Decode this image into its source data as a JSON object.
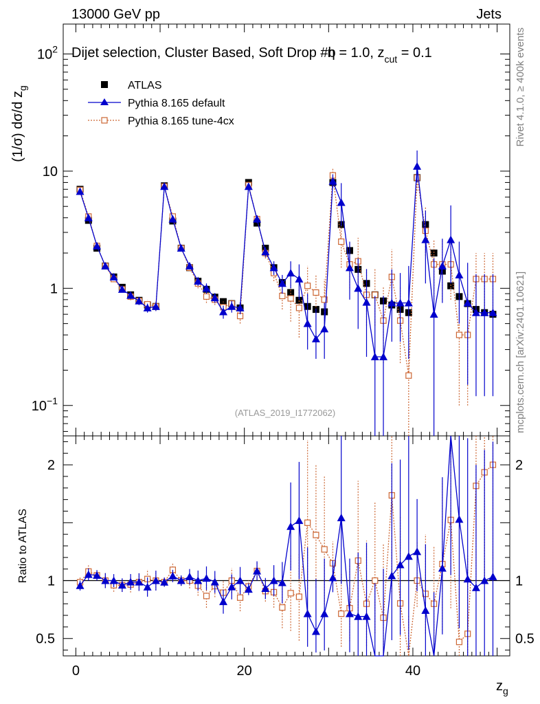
{
  "header": {
    "left": "13000 GeV pp",
    "right": "Jets"
  },
  "side_text": {
    "rivet": "Rivet 4.1.0, ≥ 400k events",
    "mcplots": "mcplots.cern.ch [arXiv:2401.10621]"
  },
  "colors": {
    "atlas": "#000000",
    "default": "#0000cc",
    "tune": "#cc6633",
    "ref_line": "#000000"
  },
  "chart_data": {
    "type": "line",
    "title": "Dijet selection, Cluster Based, Soft Drop #b = 1.0, z_cut = 0.1",
    "title_parts": {
      "main": "Dijet selection, Cluster Based, Soft Drop #b",
      "eta": "η",
      "beta_val": " = 1.0, z",
      "cut_sub": "cut",
      "cut_val": " = 0.1"
    },
    "xlabel": "z",
    "xlabel_sub": "g",
    "ylabel": "(1/σ) dσ/d z",
    "ylabel_sub": "g",
    "ratio_ylabel": "Ratio to ATLAS",
    "watermark": "(ATLAS_2019_I1772062)",
    "xlim": [
      -1.5,
      51.5
    ],
    "ylim": [
      0.055,
      180
    ],
    "ratio_ylim": [
      0.35,
      2.25
    ],
    "x_ticks": [
      0,
      20,
      40
    ],
    "y_tick_labels": {
      "1e2": "10",
      "1e2_exp": "2",
      "10": "10",
      "1": "1",
      "1e-1": "10",
      "1e-1_exp": "−1"
    },
    "ratio_ticks": [
      0.5,
      1,
      2
    ],
    "legend": [
      {
        "name": "ATLAS",
        "marker": "square-filled"
      },
      {
        "name": "Pythia 8.165 default",
        "marker": "triangle"
      },
      {
        "name": "Pythia 8.165 tune-4cx",
        "marker": "square-open"
      }
    ],
    "x": [
      0.5,
      1.5,
      2.5,
      3.5,
      4.5,
      5.5,
      6.5,
      7.5,
      8.5,
      9.5,
      10.5,
      11.5,
      12.5,
      13.5,
      14.5,
      15.5,
      16.5,
      17.5,
      18.5,
      19.5,
      20.5,
      21.5,
      22.5,
      23.5,
      24.5,
      25.5,
      26.5,
      27.5,
      28.5,
      29.5,
      30.5,
      31.5,
      32.5,
      33.5,
      34.5,
      35.5,
      36.5,
      37.5,
      38.5,
      39.5,
      40.5,
      41.5,
      42.5,
      43.5,
      44.5,
      45.5,
      46.5,
      47.5,
      48.5,
      49.5
    ],
    "series": [
      {
        "name": "ATLAS",
        "values": [
          7.0,
          3.8,
          2.2,
          1.55,
          1.25,
          1.02,
          0.88,
          0.79,
          0.72,
          0.7,
          7.5,
          3.75,
          2.2,
          1.5,
          1.15,
          0.98,
          0.84,
          0.77,
          0.74,
          0.68,
          8.0,
          3.6,
          2.2,
          1.5,
          1.12,
          0.92,
          0.79,
          0.7,
          0.66,
          0.63,
          8.0,
          3.5,
          2.1,
          1.45,
          1.1,
          0.88,
          0.78,
          0.72,
          0.66,
          0.62,
          8.8,
          3.5,
          2.0,
          1.4,
          1.05,
          0.85,
          0.74,
          0.66,
          0.62,
          0.6
        ]
      },
      {
        "name": "Pythia 8.165 default",
        "values": [
          6.7,
          4.0,
          2.3,
          1.55,
          1.25,
          0.98,
          0.87,
          0.78,
          0.68,
          0.7,
          7.4,
          3.9,
          2.2,
          1.55,
          1.15,
          1.0,
          0.83,
          0.63,
          0.7,
          0.68,
          7.4,
          3.9,
          2.05,
          1.5,
          1.1,
          1.35,
          1.2,
          0.5,
          0.37,
          0.45,
          8.2,
          5.4,
          1.5,
          1.0,
          0.76,
          0.26,
          0.26,
          0.75,
          0.75,
          0.75,
          11.0,
          2.6,
          0.6,
          1.55,
          2.6,
          1.3,
          0.75,
          0.62,
          0.62,
          0.62
        ],
        "err_low": [
          0.3,
          0.2,
          0.1,
          0.1,
          0.07,
          0.06,
          0.06,
          0.06,
          0.06,
          0.06,
          0.3,
          0.2,
          0.1,
          0.1,
          0.1,
          0.1,
          0.08,
          0.08,
          0.08,
          0.08,
          0.4,
          0.3,
          0.2,
          0.2,
          0.2,
          0.35,
          0.4,
          0.2,
          0.12,
          0.2,
          1.0,
          2.0,
          0.7,
          0.55,
          0.5,
          0.26,
          0.26,
          0.4,
          0.4,
          0.5,
          3.0,
          1.5,
          0.6,
          0.8,
          1.5,
          0.8,
          0.6,
          0.5,
          0.5,
          0.5
        ],
        "err_high": [
          0.3,
          0.2,
          0.1,
          0.1,
          0.07,
          0.06,
          0.06,
          0.06,
          0.06,
          0.06,
          0.3,
          0.2,
          0.1,
          0.1,
          0.1,
          0.1,
          0.08,
          0.08,
          0.08,
          0.08,
          0.4,
          0.3,
          0.2,
          0.2,
          0.2,
          0.35,
          0.4,
          0.4,
          0.3,
          0.3,
          1.2,
          2.5,
          1.0,
          0.8,
          0.7,
          0.6,
          0.6,
          0.7,
          0.6,
          0.8,
          4.0,
          2.0,
          1.2,
          1.1,
          2.5,
          1.2,
          0.9,
          0.7,
          0.7,
          0.7
        ]
      },
      {
        "name": "Pythia 8.165 tune-4cx",
        "values": [
          6.9,
          4.1,
          2.3,
          1.55,
          1.2,
          0.98,
          0.85,
          0.78,
          0.73,
          0.7,
          7.4,
          4.1,
          2.2,
          1.5,
          1.1,
          0.85,
          0.8,
          0.69,
          0.74,
          0.58,
          7.6,
          3.9,
          2.0,
          1.35,
          0.86,
          0.82,
          0.68,
          1.05,
          0.92,
          0.8,
          9.2,
          2.5,
          1.6,
          1.7,
          0.88,
          0.88,
          0.53,
          1.25,
          0.53,
          0.18,
          8.8,
          3.1,
          1.6,
          1.6,
          1.6,
          0.4,
          0.4,
          1.2,
          1.2,
          1.2
        ],
        "err_low": [
          0.3,
          0.2,
          0.1,
          0.1,
          0.07,
          0.06,
          0.06,
          0.06,
          0.06,
          0.06,
          0.3,
          0.2,
          0.1,
          0.1,
          0.1,
          0.1,
          0.08,
          0.08,
          0.08,
          0.08,
          0.4,
          0.3,
          0.2,
          0.2,
          0.2,
          0.3,
          0.3,
          0.4,
          0.3,
          0.3,
          1.0,
          1.0,
          0.6,
          0.7,
          0.4,
          0.4,
          0.3,
          0.6,
          0.3,
          0.18,
          2.0,
          1.2,
          0.8,
          0.8,
          0.8,
          0.3,
          0.3,
          0.6,
          0.6,
          0.6
        ],
        "err_high": [
          0.3,
          0.2,
          0.1,
          0.1,
          0.07,
          0.06,
          0.06,
          0.06,
          0.06,
          0.06,
          0.3,
          0.2,
          0.1,
          0.1,
          0.1,
          0.1,
          0.08,
          0.08,
          0.08,
          0.08,
          0.4,
          0.3,
          0.2,
          0.2,
          0.2,
          0.3,
          0.3,
          0.5,
          0.4,
          0.4,
          1.5,
          1.2,
          0.8,
          1.0,
          0.6,
          0.6,
          0.5,
          0.9,
          0.5,
          0.25,
          3.0,
          1.8,
          1.0,
          1.0,
          1.0,
          0.5,
          0.5,
          0.8,
          0.8,
          0.8
        ]
      }
    ]
  }
}
